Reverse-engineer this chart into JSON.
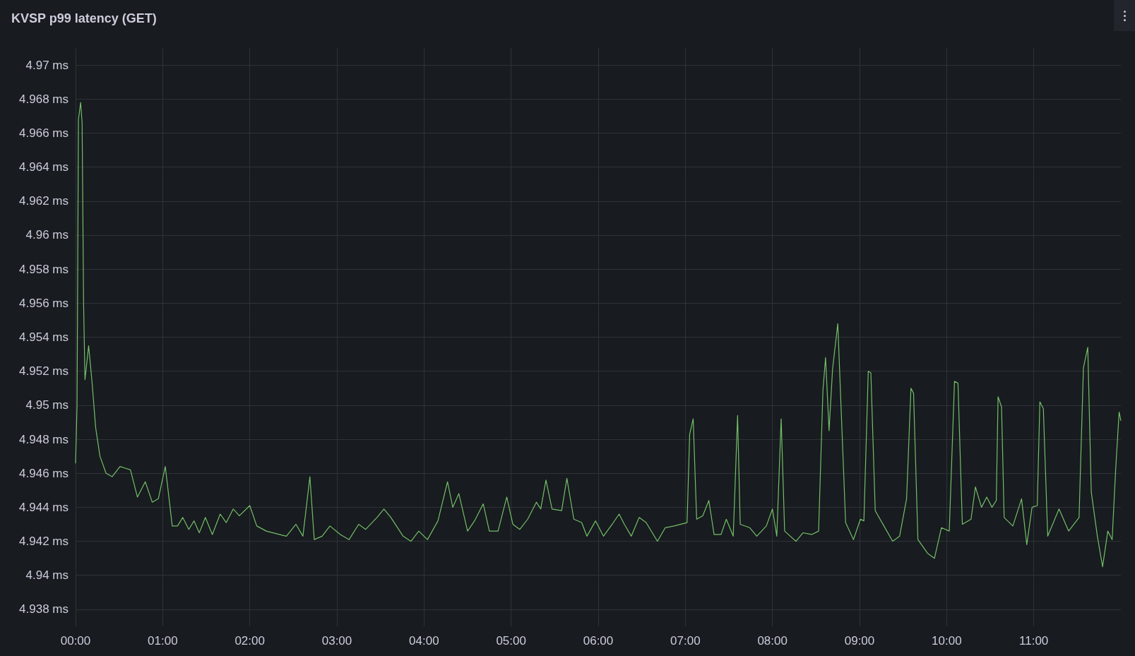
{
  "chart_data": {
    "type": "line",
    "title": "KVSP p99 latency (GET)",
    "x": [
      0,
      0.017,
      0.033,
      0.058,
      0.075,
      0.092,
      0.108,
      0.15,
      0.19,
      0.23,
      0.28,
      0.35,
      0.42,
      0.51,
      0.57,
      0.63,
      0.71,
      0.8,
      0.88,
      0.95,
      1.03,
      1.11,
      1.17,
      1.23,
      1.3,
      1.36,
      1.42,
      1.49,
      1.57,
      1.66,
      1.73,
      1.81,
      1.88,
      2.0,
      2.08,
      2.19,
      2.34,
      2.42,
      2.53,
      2.61,
      2.69,
      2.74,
      2.83,
      2.92,
      3.04,
      3.14,
      3.25,
      3.33,
      3.46,
      3.54,
      3.62,
      3.76,
      3.85,
      3.94,
      4.04,
      4.16,
      4.27,
      4.33,
      4.4,
      4.5,
      4.58,
      4.68,
      4.75,
      4.85,
      4.95,
      5.02,
      5.1,
      5.19,
      5.29,
      5.34,
      5.4,
      5.47,
      5.58,
      5.64,
      5.72,
      5.81,
      5.87,
      5.97,
      6.06,
      6.16,
      6.24,
      6.3,
      6.38,
      6.47,
      6.55,
      6.68,
      6.77,
      6.87,
      7.02,
      7.05,
      7.09,
      7.13,
      7.2,
      7.27,
      7.33,
      7.41,
      7.47,
      7.55,
      7.6,
      7.63,
      7.74,
      7.82,
      7.93,
      8.0,
      8.05,
      8.1,
      8.14,
      8.27,
      8.35,
      8.45,
      8.53,
      8.58,
      8.61,
      8.65,
      8.69,
      8.75,
      8.84,
      8.93,
      9.01,
      9.05,
      9.1,
      9.13,
      9.18,
      9.28,
      9.38,
      9.46,
      9.54,
      9.59,
      9.62,
      9.67,
      9.78,
      9.86,
      9.94,
      10.03,
      10.09,
      10.13,
      10.18,
      10.28,
      10.33,
      10.4,
      10.46,
      10.52,
      10.57,
      10.59,
      10.63,
      10.66,
      10.76,
      10.86,
      10.92,
      10.98,
      11.04,
      11.07,
      11.11,
      11.16,
      11.29,
      11.4,
      11.52,
      11.57,
      11.62,
      11.66,
      11.73,
      11.79,
      11.85,
      11.9,
      11.94,
      11.98,
      12.0
    ],
    "series": [
      {
        "color": "#73bf69",
        "values": [
          4.9466,
          4.95,
          4.9668,
          4.9678,
          4.9666,
          4.956,
          4.9515,
          4.9535,
          4.9513,
          4.9487,
          4.947,
          4.946,
          4.9458,
          4.9464,
          4.9463,
          4.9462,
          4.9446,
          4.9455,
          4.9443,
          4.9445,
          4.9464,
          4.9429,
          4.9429,
          4.9434,
          4.9427,
          4.9432,
          4.9425,
          4.9434,
          4.9424,
          4.9436,
          4.9431,
          4.9439,
          4.9435,
          4.9441,
          4.9429,
          4.9426,
          4.9424,
          4.9423,
          4.943,
          4.9423,
          4.9458,
          4.9421,
          4.9423,
          4.9429,
          4.9424,
          4.9421,
          4.943,
          4.9427,
          4.9434,
          4.9439,
          4.9434,
          4.9423,
          4.942,
          4.9426,
          4.9421,
          4.9432,
          4.9455,
          4.944,
          4.9448,
          4.9426,
          4.9432,
          4.9442,
          4.9426,
          4.9426,
          4.9446,
          4.943,
          4.9427,
          4.9433,
          4.9443,
          4.9439,
          4.9456,
          4.9439,
          4.9438,
          4.9457,
          4.9433,
          4.9431,
          4.9423,
          4.9432,
          4.9423,
          4.943,
          4.9436,
          4.943,
          4.9423,
          4.9434,
          4.9431,
          4.942,
          4.9428,
          4.9429,
          4.9431,
          4.9483,
          4.9492,
          4.9433,
          4.9435,
          4.9444,
          4.9424,
          4.9424,
          4.9433,
          4.9423,
          4.9494,
          4.943,
          4.9428,
          4.9423,
          4.9429,
          4.9439,
          4.9423,
          4.9492,
          4.9426,
          4.942,
          4.9425,
          4.9424,
          4.9426,
          4.9509,
          4.9528,
          4.9485,
          4.9521,
          4.9548,
          4.9431,
          4.9421,
          4.9433,
          4.9432,
          4.952,
          4.9519,
          4.9438,
          4.9429,
          4.942,
          4.9423,
          4.9445,
          4.951,
          4.9507,
          4.9421,
          4.9413,
          4.941,
          4.9428,
          4.9426,
          4.9514,
          4.9513,
          4.943,
          4.9433,
          4.9452,
          4.944,
          4.9446,
          4.944,
          4.9444,
          4.9505,
          4.9499,
          4.9434,
          4.9429,
          4.9445,
          4.9418,
          4.944,
          4.9441,
          4.9502,
          4.9498,
          4.9423,
          4.9439,
          4.9426,
          4.9434,
          4.9522,
          4.9534,
          4.9449,
          4.9423,
          4.9405,
          4.9426,
          4.9421,
          4.9462,
          4.9496,
          4.9491
        ]
      }
    ],
    "xlim": [
      0,
      12
    ],
    "xticks": [
      {
        "value": 0,
        "label": "00:00"
      },
      {
        "value": 1,
        "label": "01:00"
      },
      {
        "value": 2,
        "label": "02:00"
      },
      {
        "value": 3,
        "label": "03:00"
      },
      {
        "value": 4,
        "label": "04:00"
      },
      {
        "value": 5,
        "label": "05:00"
      },
      {
        "value": 6,
        "label": "06:00"
      },
      {
        "value": 7,
        "label": "07:00"
      },
      {
        "value": 8,
        "label": "08:00"
      },
      {
        "value": 9,
        "label": "09:00"
      },
      {
        "value": 10,
        "label": "10:00"
      },
      {
        "value": 11,
        "label": "11:00"
      }
    ],
    "ylim": [
      4.937,
      4.971
    ],
    "yticks": [
      {
        "value": 4.938,
        "label": "4.938 ms"
      },
      {
        "value": 4.94,
        "label": "4.94 ms"
      },
      {
        "value": 4.942,
        "label": "4.942 ms"
      },
      {
        "value": 4.944,
        "label": "4.944 ms"
      },
      {
        "value": 4.946,
        "label": "4.946 ms"
      },
      {
        "value": 4.948,
        "label": "4.948 ms"
      },
      {
        "value": 4.95,
        "label": "4.95 ms"
      },
      {
        "value": 4.952,
        "label": "4.952 ms"
      },
      {
        "value": 4.954,
        "label": "4.954 ms"
      },
      {
        "value": 4.956,
        "label": "4.956 ms"
      },
      {
        "value": 4.958,
        "label": "4.958 ms"
      },
      {
        "value": 4.96,
        "label": "4.96 ms"
      },
      {
        "value": 4.962,
        "label": "4.962 ms"
      },
      {
        "value": 4.964,
        "label": "4.964 ms"
      },
      {
        "value": 4.966,
        "label": "4.966 ms"
      },
      {
        "value": 4.968,
        "label": "4.968 ms"
      },
      {
        "value": 4.97,
        "label": "4.97 ms"
      }
    ],
    "grid": true,
    "marker": "none",
    "line_style": "solid"
  }
}
